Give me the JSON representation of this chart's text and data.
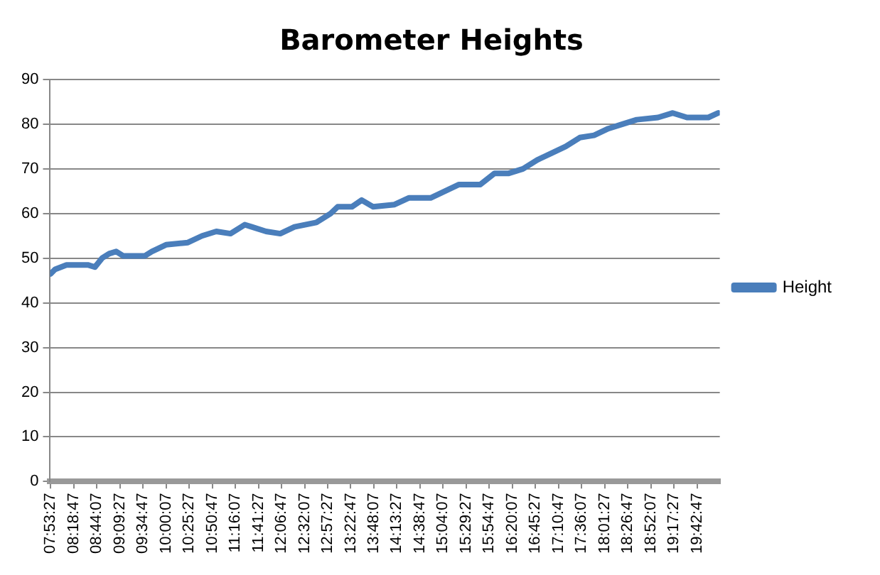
{
  "chart_data": {
    "type": "line",
    "title": "Barometer Heights",
    "x": [
      7.89,
      7.97,
      8.18,
      8.57,
      8.7,
      8.83,
      8.96,
      9.09,
      9.22,
      9.61,
      9.74,
      10.0,
      10.4,
      10.66,
      10.92,
      11.18,
      11.44,
      11.57,
      11.83,
      12.09,
      12.35,
      12.75,
      13.01,
      13.14,
      13.4,
      13.58,
      13.79,
      14.18,
      14.44,
      14.84,
      15.1,
      15.36,
      15.75,
      16.01,
      16.27,
      16.53,
      16.79,
      17.05,
      17.31,
      17.57,
      17.83,
      18.09,
      18.35,
      18.61,
      19.0,
      19.27,
      19.53,
      19.92,
      20.1
    ],
    "series": [
      {
        "name": "Height",
        "color": "#4a7ebb",
        "values": [
          46.5,
          47.5,
          48.5,
          48.5,
          48,
          50,
          51,
          51.5,
          50.5,
          50.5,
          51.5,
          53,
          53.5,
          55,
          56,
          55.5,
          57.5,
          57,
          56,
          55.5,
          57,
          58,
          60,
          61.5,
          61.5,
          63,
          61.5,
          62,
          63.5,
          63.5,
          65,
          66.5,
          66.5,
          69,
          69,
          70,
          72,
          73.5,
          75,
          77,
          77.5,
          79,
          80,
          81,
          81.5,
          82.5,
          81.5,
          81.5,
          82.5
        ]
      }
    ],
    "xlim": [
      7.88,
      20.13
    ],
    "xticks": [
      {
        "value": 7.8908,
        "label": "07:53:27"
      },
      {
        "value": 8.3131,
        "label": "08:18:47"
      },
      {
        "value": 8.7353,
        "label": "08:44:07"
      },
      {
        "value": 9.1575,
        "label": "09:09:27"
      },
      {
        "value": 9.5797,
        "label": "09:34:47"
      },
      {
        "value": 10.0019,
        "label": "10:00:07"
      },
      {
        "value": 10.4242,
        "label": "10:25:27"
      },
      {
        "value": 10.8464,
        "label": "10:50:47"
      },
      {
        "value": 11.2686,
        "label": "11:16:07"
      },
      {
        "value": 11.6908,
        "label": "11:41:27"
      },
      {
        "value": 12.1131,
        "label": "12:06:47"
      },
      {
        "value": 12.5353,
        "label": "12:32:07"
      },
      {
        "value": 12.9575,
        "label": "12:57:27"
      },
      {
        "value": 13.3797,
        "label": "13:22:47"
      },
      {
        "value": 13.8019,
        "label": "13:48:07"
      },
      {
        "value": 14.2242,
        "label": "14:13:27"
      },
      {
        "value": 14.6464,
        "label": "14:38:47"
      },
      {
        "value": 15.0686,
        "label": "15:04:07"
      },
      {
        "value": 15.4908,
        "label": "15:29:27"
      },
      {
        "value": 15.9131,
        "label": "15:54:47"
      },
      {
        "value": 16.3353,
        "label": "16:20:07"
      },
      {
        "value": 16.7575,
        "label": "16:45:27"
      },
      {
        "value": 17.1797,
        "label": "17:10:47"
      },
      {
        "value": 17.6019,
        "label": "17:36:07"
      },
      {
        "value": 18.0242,
        "label": "18:01:27"
      },
      {
        "value": 18.4464,
        "label": "18:26:47"
      },
      {
        "value": 18.8686,
        "label": "18:52:07"
      },
      {
        "value": 19.2908,
        "label": "19:17:27"
      },
      {
        "value": 19.7131,
        "label": "19:42:47"
      }
    ],
    "ylim": [
      0,
      90
    ],
    "yticks": [
      0,
      10,
      20,
      30,
      40,
      50,
      60,
      70,
      80,
      90
    ],
    "grid": "y",
    "legend": "right",
    "marker": "none",
    "line_style": "solid"
  }
}
